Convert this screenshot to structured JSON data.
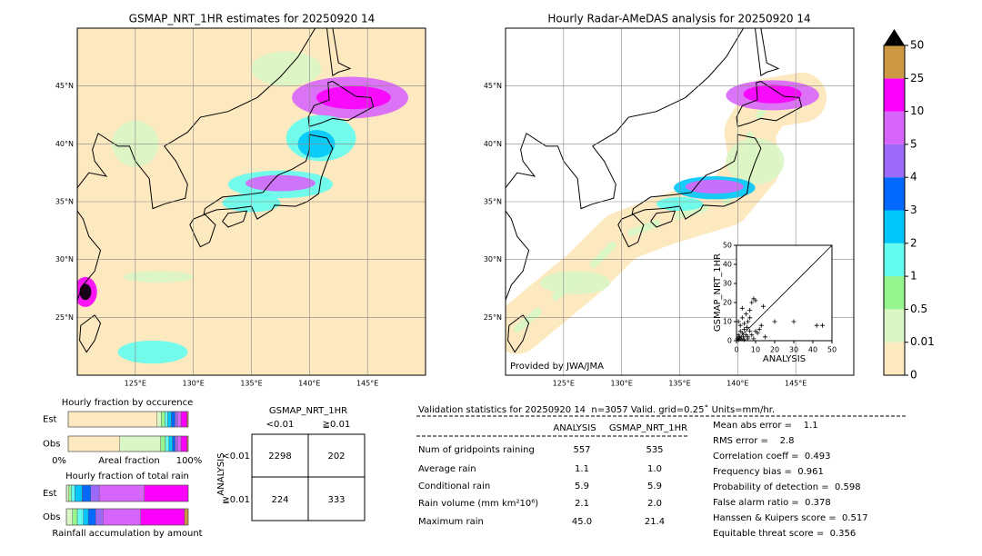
{
  "maps": [
    {
      "title": "GSMAP_NRT_1HR estimates for 20250920 14",
      "lonlim": [
        120,
        150
      ],
      "latlim": [
        20,
        50
      ],
      "latticks": [
        {
          "value": 45,
          "label": "45°N"
        },
        {
          "value": 40,
          "label": "40°N"
        },
        {
          "value": 35,
          "label": "35°N"
        },
        {
          "value": 30,
          "label": "30°N"
        },
        {
          "value": 25,
          "label": "25°N"
        }
      ],
      "lonticks": [
        {
          "value": 125,
          "label": "125°E"
        },
        {
          "value": 130,
          "label": "130°E"
        },
        {
          "value": 135,
          "label": "135°E"
        },
        {
          "value": 140,
          "label": "140°E"
        },
        {
          "value": 145,
          "label": "145°E"
        }
      ]
    },
    {
      "title": "Hourly Radar-AMeDAS analysis for 20250920 14",
      "credit": "Provided by JWA/JMA",
      "lonlim": [
        120,
        150
      ],
      "latlim": [
        20,
        50
      ],
      "latticks": [
        {
          "value": 45,
          "label": "45°N"
        },
        {
          "value": 40,
          "label": "40°N"
        },
        {
          "value": 35,
          "label": "35°N"
        },
        {
          "value": 30,
          "label": "30°N"
        },
        {
          "value": 25,
          "label": "25°N"
        }
      ],
      "lonticks": [
        {
          "value": 125,
          "label": "125°E"
        },
        {
          "value": 130,
          "label": "130°E"
        },
        {
          "value": 135,
          "label": "135°E"
        },
        {
          "value": 140,
          "label": "140°E"
        },
        {
          "value": 145,
          "label": "145°E"
        }
      ]
    }
  ],
  "colorbar": {
    "ticks": [
      0,
      0.01,
      0.5,
      1,
      2,
      3,
      4,
      5,
      10,
      25,
      50
    ],
    "colors": [
      "#fde9c0",
      "#d9f6c4",
      "#96f58c",
      "#63fcf0",
      "#00c6fb",
      "#0068fb",
      "#9b6af9",
      "#d865fb",
      "#fb00fb",
      "#cd9842"
    ],
    "extend_color": "#000000"
  },
  "scatter": {
    "type": "scatter",
    "xlabel": "ANALYSIS",
    "ylabel": "GSMAP_NRT_1HR",
    "xlim": [
      0,
      50
    ],
    "ylim": [
      0,
      50
    ],
    "xticks": [
      0,
      10,
      20,
      30,
      40,
      50
    ],
    "yticks": [
      0,
      10,
      20,
      30,
      40,
      50
    ],
    "x": [
      0.5,
      1,
      1,
      1.5,
      2,
      2,
      2.5,
      3,
      3,
      3.5,
      4,
      4,
      5,
      5,
      5.5,
      6,
      6,
      7,
      7,
      8,
      8,
      9,
      10,
      11,
      12,
      13,
      14,
      15,
      20,
      9,
      30,
      6,
      42,
      45,
      3,
      4,
      7,
      2,
      1,
      10
    ],
    "y": [
      1,
      0.5,
      3,
      2,
      5,
      8,
      1,
      4,
      12,
      2,
      6,
      9,
      3,
      14,
      7,
      2,
      10,
      5,
      16,
      3,
      20,
      1,
      21,
      4,
      6,
      8,
      18,
      2,
      10,
      22,
      10,
      1,
      8,
      8,
      17,
      0.5,
      12,
      1,
      10,
      5
    ]
  },
  "occurrence": {
    "title": "Hourly fraction by occurence",
    "rows": [
      "Est",
      "Obs"
    ],
    "axis_labels": [
      "0%",
      "Areal fraction",
      "100%"
    ],
    "series": [
      {
        "color": "#fde9c0",
        "values": [
          74,
          43
        ]
      },
      {
        "color": "#d9f6c4",
        "values": [
          3.5,
          34
        ]
      },
      {
        "color": "#96f58c",
        "values": [
          3,
          4
        ]
      },
      {
        "color": "#63fcf0",
        "values": [
          2.5,
          3
        ]
      },
      {
        "color": "#00c6fb",
        "values": [
          3,
          3
        ]
      },
      {
        "color": "#0068fb",
        "values": [
          3,
          2
        ]
      },
      {
        "color": "#9b6af9",
        "values": [
          2,
          2
        ]
      },
      {
        "color": "#d865fb",
        "values": [
          3,
          3
        ]
      },
      {
        "color": "#fb00fb",
        "values": [
          5,
          5
        ]
      },
      {
        "color": "#cd9842",
        "values": [
          1,
          1
        ]
      }
    ]
  },
  "total_rain": {
    "title": "Hourly fraction of total rain",
    "footer": "Rainfall accumulation by amount",
    "rows": [
      "Est",
      "Obs"
    ],
    "series": [
      {
        "color": "#d9f6c4",
        "values": [
          2,
          5
        ]
      },
      {
        "color": "#96f58c",
        "values": [
          2,
          4
        ]
      },
      {
        "color": "#63fcf0",
        "values": [
          3,
          5
        ]
      },
      {
        "color": "#00c6fb",
        "values": [
          6,
          4
        ]
      },
      {
        "color": "#0068fb",
        "values": [
          7,
          6
        ]
      },
      {
        "color": "#9b6af9",
        "values": [
          7,
          6
        ]
      },
      {
        "color": "#d865fb",
        "values": [
          37,
          31
        ]
      },
      {
        "color": "#fb00fb",
        "values": [
          36,
          36
        ]
      },
      {
        "color": "#cd9842",
        "values": [
          0,
          3
        ]
      }
    ]
  },
  "contingency": {
    "title": "GSMAP_NRT_1HR",
    "col_labels": [
      "<0.01",
      "≧0.01"
    ],
    "row_title": "ANALYSIS",
    "row_labels": [
      "<0.01",
      "≧0.01"
    ],
    "cells": [
      [
        "2298",
        "202"
      ],
      [
        "224",
        "333"
      ]
    ]
  },
  "validation": {
    "header": "Validation statistics for 20250920 14  n=3057 Valid. grid=0.25˚ Units=mm/hr.",
    "columns": [
      "ANALYSIS",
      "GSMAP_NRT_1HR"
    ],
    "rows": [
      [
        "Num of gridpoints raining",
        "557",
        "535"
      ],
      [
        "Average rain",
        "1.1",
        "1.0"
      ],
      [
        "Conditional rain",
        "5.9",
        "5.9"
      ],
      [
        "Rain volume (mm km²10⁶)",
        "2.1",
        "2.0"
      ],
      [
        "Maximum rain",
        "45.0",
        "21.4"
      ]
    ],
    "scores": [
      "Mean abs error =    1.1",
      "RMS error =    2.8",
      "Correlation coeff =  0.493",
      "Frequency bias =  0.961",
      "Probability of detection =  0.598",
      "False alarm ratio =  0.378",
      "Hanssen & Kuipers score =  0.517",
      "Equitable threat score =  0.356"
    ]
  }
}
